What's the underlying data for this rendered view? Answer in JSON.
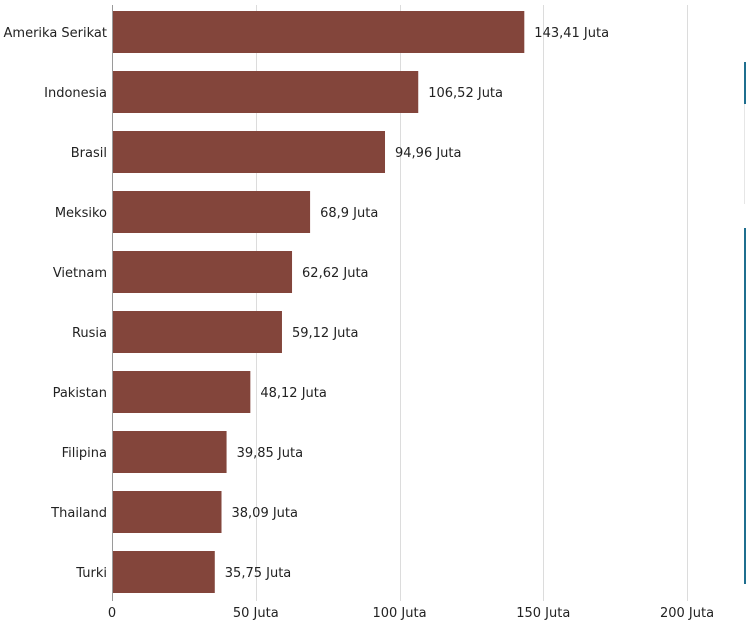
{
  "chart_data": {
    "type": "bar",
    "orientation": "horizontal",
    "categories": [
      "Amerika Serikat",
      "Indonesia",
      "Brasil",
      "Meksiko",
      "Vietnam",
      "Rusia",
      "Pakistan",
      "Filipina",
      "Thailand",
      "Turki"
    ],
    "values": [
      143.41,
      106.52,
      94.96,
      68.9,
      62.62,
      59.12,
      48.12,
      39.85,
      38.09,
      35.75
    ],
    "value_labels": [
      "143,41 Juta",
      "106,52 Juta",
      "94,96 Juta",
      "68,9 Juta",
      "62,62 Juta",
      "59,12 Juta",
      "48,12 Juta",
      "39,85 Juta",
      "38,09 Juta",
      "35,75 Juta"
    ],
    "x_ticks": [
      0,
      50,
      100,
      150,
      200
    ],
    "x_tick_labels": [
      "0",
      "50 Juta",
      "100 Juta",
      "150 Juta",
      "200 Juta"
    ],
    "xlim": [
      0,
      200
    ],
    "grid": true,
    "title": "",
    "xlabel": "",
    "ylabel": ""
  },
  "colors": {
    "bar": "#83453b",
    "accent": "#1f6f8f"
  }
}
